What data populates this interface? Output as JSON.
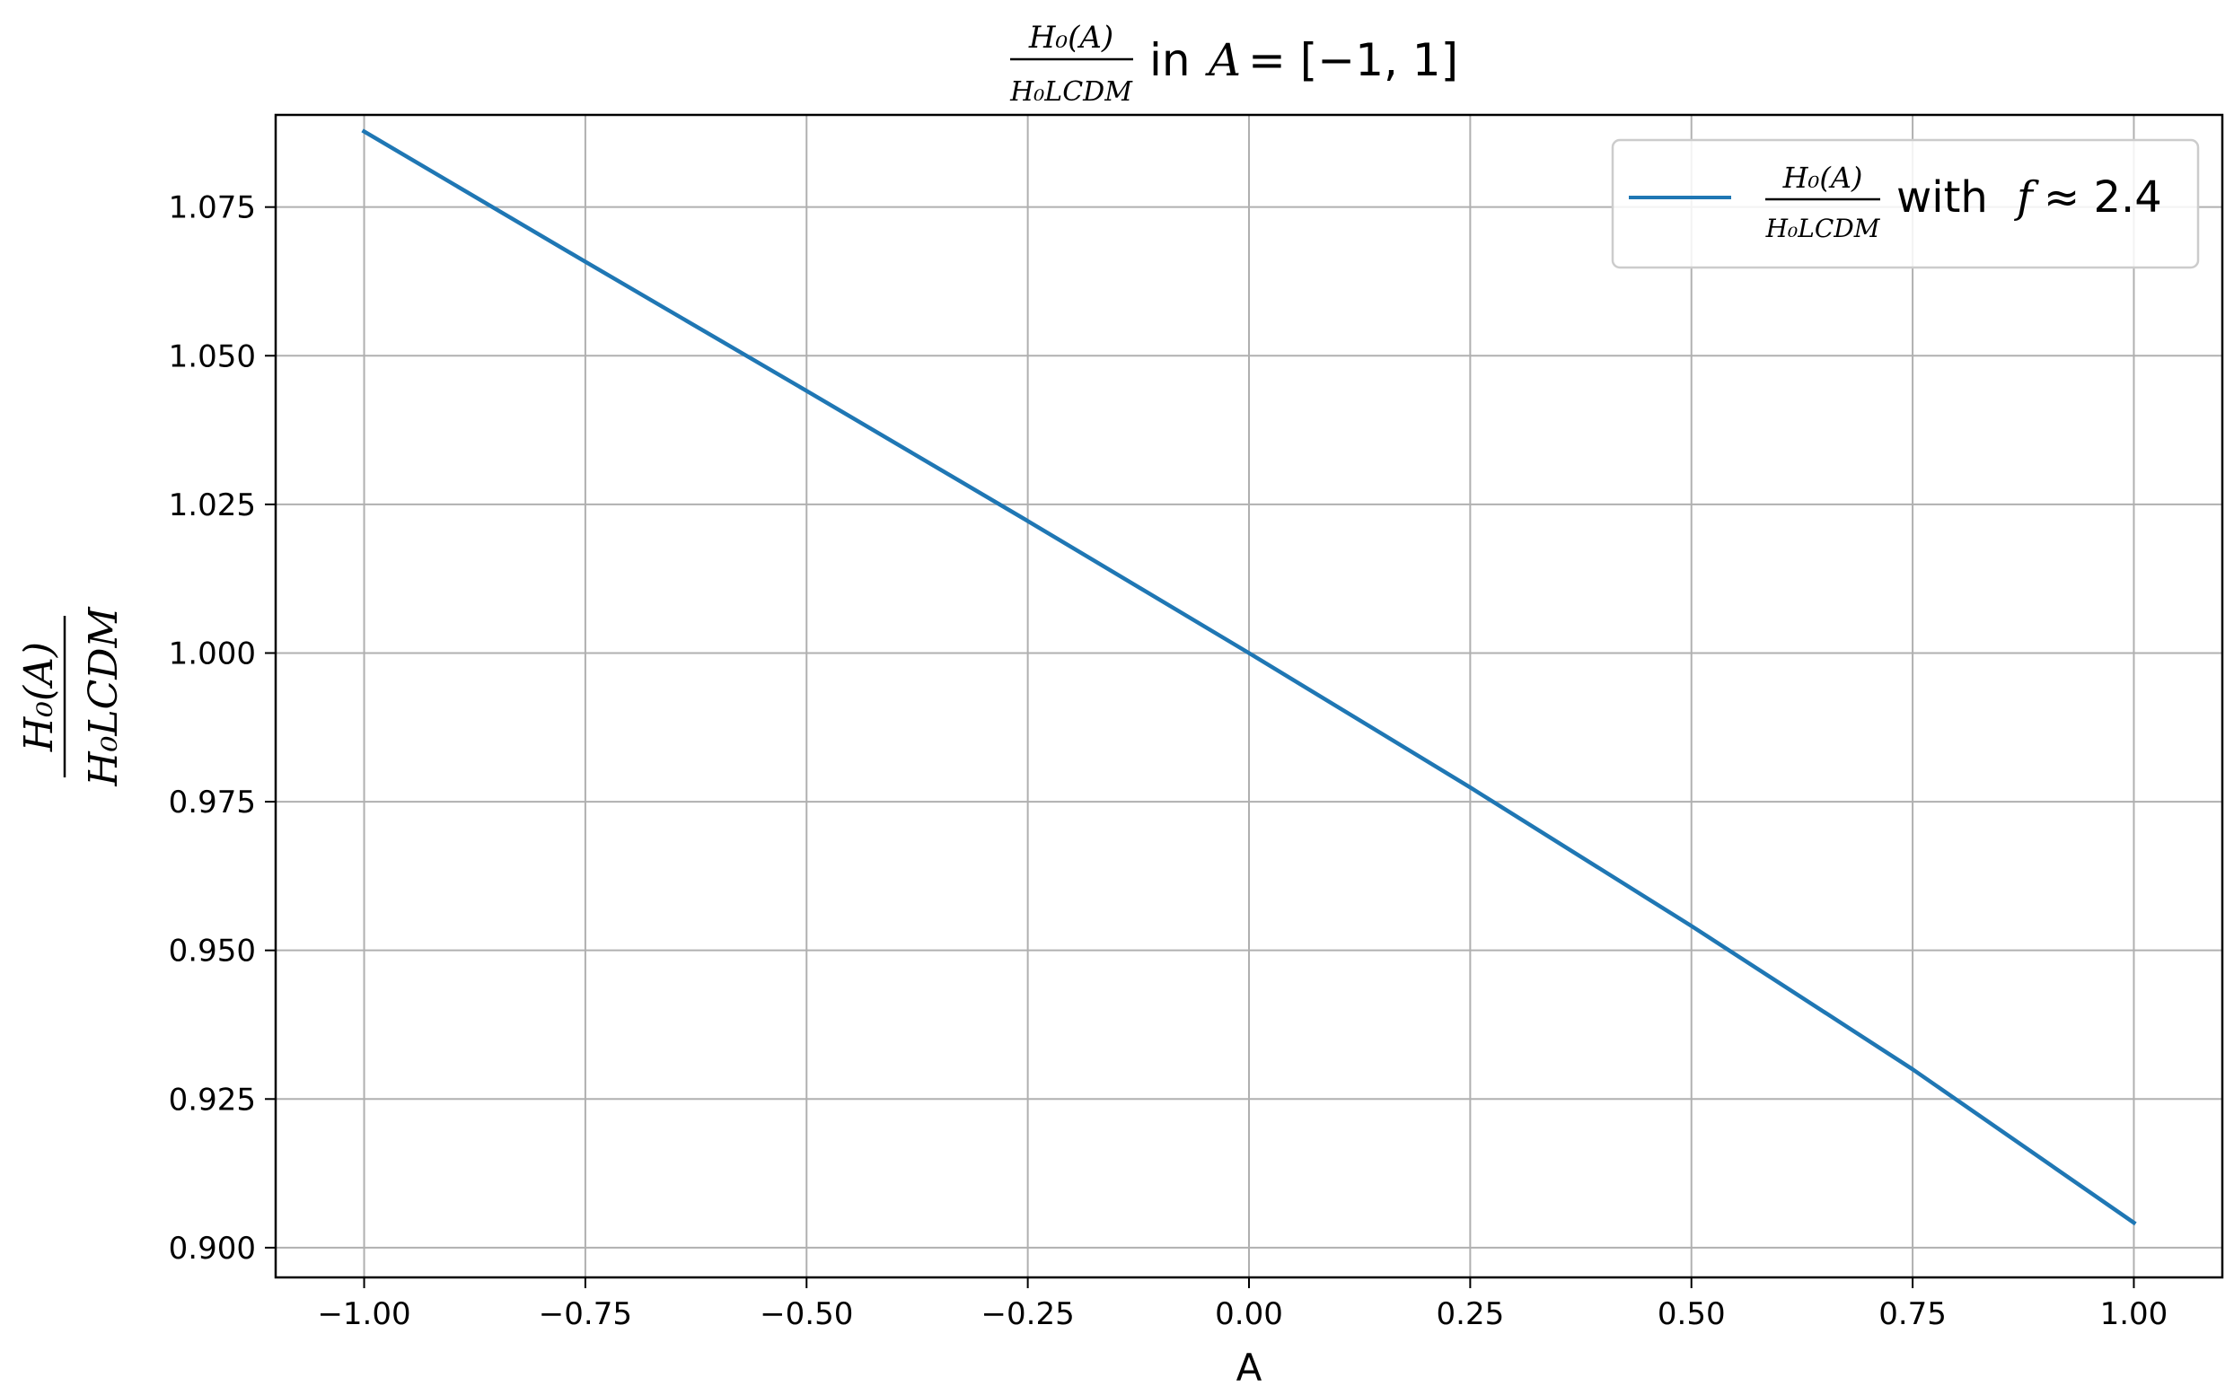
{
  "chart_data": {
    "type": "line",
    "title": {
      "frac_num": "H₀(A)",
      "frac_den": "H₀LCDM",
      "suffix_in": "in",
      "suffix_var": "A",
      "suffix_eq": "= [−1, 1]"
    },
    "xlabel": "A",
    "ylabel": {
      "frac_num": "H₀(A)",
      "frac_den": "H₀LCDM"
    },
    "xlim": [
      -1.1,
      1.1
    ],
    "ylim": [
      0.895,
      1.0905
    ],
    "xticks": [
      -1.0,
      -0.75,
      -0.5,
      -0.25,
      0.0,
      0.25,
      0.5,
      0.75,
      1.0
    ],
    "xtick_labels": [
      "−1.00",
      "−0.75",
      "−0.50",
      "−0.25",
      "0.00",
      "0.25",
      "0.50",
      "0.75",
      "1.00"
    ],
    "yticks": [
      0.9,
      0.925,
      0.95,
      0.975,
      1.0,
      1.025,
      1.05,
      1.075
    ],
    "ytick_labels": [
      "0.900",
      "0.925",
      "0.950",
      "0.975",
      "1.000",
      "1.025",
      "1.050",
      "1.075"
    ],
    "grid": true,
    "legend_position": "top-right",
    "legend": {
      "frac_num": "H₀(A)",
      "frac_den": "H₀LCDM",
      "with_text": "with",
      "f_var": "f",
      "approx_text": "≈ 2.4"
    },
    "series": [
      {
        "color": "#1f77b4",
        "x": [
          -1.0,
          -0.75,
          -0.5,
          -0.25,
          0.0,
          0.25,
          0.5,
          0.75,
          1.0
        ],
        "y": [
          1.0877,
          1.0658,
          1.0441,
          1.0222,
          1.0,
          0.9774,
          0.9541,
          0.93,
          0.9042
        ]
      }
    ]
  }
}
